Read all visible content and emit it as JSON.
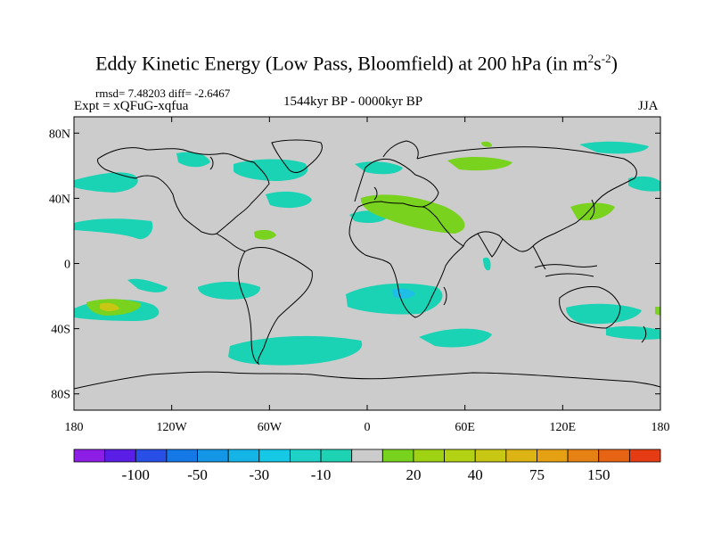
{
  "title": {
    "main": "Eddy Kinetic Energy (Low Pass, Bloomfield) at 200 hPa (in m",
    "sup1": "2",
    "mid": "s",
    "sup2": "-2",
    "end": ")"
  },
  "stats": "rmsd= 7.48203 diff= -2.6467",
  "experiment": "Expt = xQFuG-xqfua",
  "period": "1544kyr BP - 0000kyr BP",
  "season": "JJA",
  "colors": {
    "land_ocean_neutral": "#cccccc",
    "coastline": "#000000",
    "cyan_anomaly": "#1ad2b4",
    "cyan_dark": "#1ebee6",
    "green_anomaly": "#78d21e",
    "yellow_anomaly": "#c8c814"
  },
  "map": {
    "projection": "cylindrical-equidistant",
    "lon_range": [
      -180,
      180
    ],
    "lat_range": [
      -90,
      90
    ],
    "lat_ticks": [
      {
        "lat": 80,
        "label": "80N"
      },
      {
        "lat": 40,
        "label": "40N"
      },
      {
        "lat": 0,
        "label": "0"
      },
      {
        "lat": -40,
        "label": "40S"
      },
      {
        "lat": -80,
        "label": "80S"
      }
    ],
    "lon_ticks": [
      {
        "lon": -180,
        "label": "180"
      },
      {
        "lon": -120,
        "label": "120W"
      },
      {
        "lon": -60,
        "label": "60W"
      },
      {
        "lon": 0,
        "label": "0"
      },
      {
        "lon": 60,
        "label": "60E"
      },
      {
        "lon": 120,
        "label": "120E"
      },
      {
        "lon": 180,
        "label": "180"
      }
    ]
  },
  "colorbar": {
    "colors": [
      "#8c1ee6",
      "#5a1ee6",
      "#2850e6",
      "#1478e6",
      "#1496e6",
      "#14b4e6",
      "#14c8e6",
      "#1ed2c8",
      "#1ed2b4",
      "#cccccc",
      "#78d21e",
      "#a0d214",
      "#b4d214",
      "#c8c814",
      "#dcb414",
      "#e6a014",
      "#e68214",
      "#e66414",
      "#e63c14"
    ],
    "labels": [
      {
        "after_box": 2,
        "text": "-100"
      },
      {
        "after_box": 4,
        "text": "-50"
      },
      {
        "after_box": 6,
        "text": "-30"
      },
      {
        "after_box": 8,
        "text": "-10"
      },
      {
        "after_box": 11,
        "text": "20"
      },
      {
        "after_box": 13,
        "text": "40"
      },
      {
        "after_box": 15,
        "text": "75"
      },
      {
        "after_box": 17,
        "text": "150"
      }
    ]
  }
}
